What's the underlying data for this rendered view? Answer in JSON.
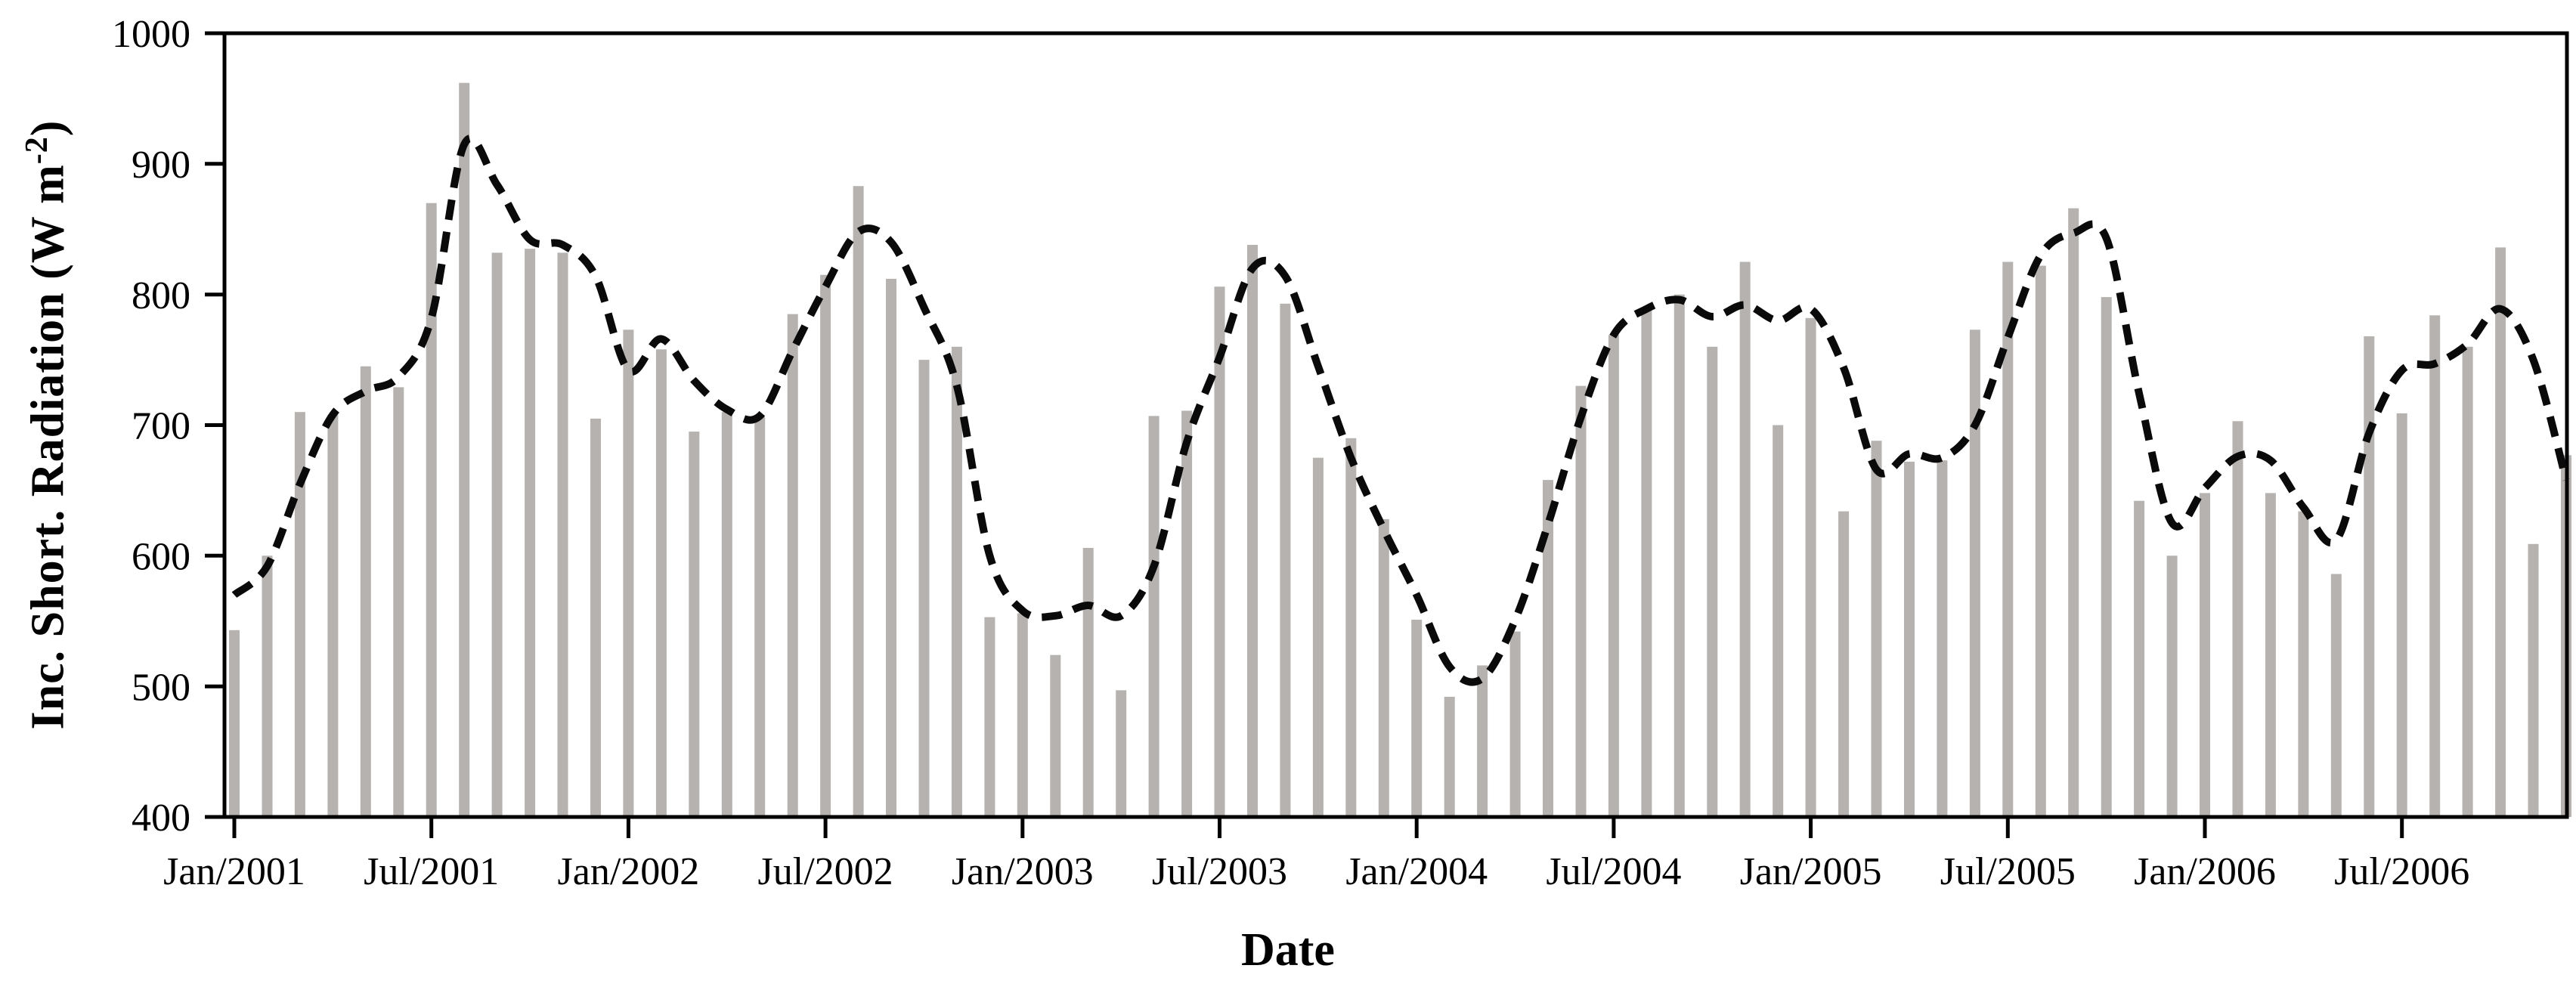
{
  "chart_data": {
    "type": "bar+line",
    "title": "",
    "xlabel": "Date",
    "ylabel_prefix": "Inc. Short. Radiation (W m",
    "ylabel_sup": "-2",
    "ylabel_suffix": ")",
    "ylim": [
      400,
      1000
    ],
    "yticks": [
      400,
      500,
      600,
      700,
      800,
      900,
      1000
    ],
    "grid": false,
    "legend": "none",
    "xtick_labels": [
      "Jan/2001",
      "Jul/2001",
      "Jan/2002",
      "Jul/2002",
      "Jan/2003",
      "Jul/2003",
      "Jan/2004",
      "Jul/2004",
      "Jan/2005",
      "Jul/2005",
      "Jan/2006",
      "Jul/2006"
    ],
    "xtick_month_indices": [
      0,
      6,
      12,
      18,
      24,
      30,
      36,
      42,
      48,
      54,
      60,
      66
    ],
    "months": [
      "Jan/2001",
      "Feb/2001",
      "Mar/2001",
      "Apr/2001",
      "May/2001",
      "Jun/2001",
      "Jul/2001",
      "Aug/2001",
      "Sep/2001",
      "Oct/2001",
      "Nov/2001",
      "Dec/2001",
      "Jan/2002",
      "Feb/2002",
      "Mar/2002",
      "Apr/2002",
      "May/2002",
      "Jun/2002",
      "Jul/2002",
      "Aug/2002",
      "Sep/2002",
      "Oct/2002",
      "Nov/2002",
      "Dec/2002",
      "Jan/2003",
      "Feb/2003",
      "Mar/2003",
      "Apr/2003",
      "May/2003",
      "Jun/2003",
      "Jul/2003",
      "Aug/2003",
      "Sep/2003",
      "Oct/2003",
      "Nov/2003",
      "Dec/2003",
      "Jan/2004",
      "Feb/2004",
      "Mar/2004",
      "Apr/2004",
      "May/2004",
      "Jun/2004",
      "Jul/2004",
      "Aug/2004",
      "Sep/2004",
      "Oct/2004",
      "Nov/2004",
      "Dec/2004",
      "Jan/2005",
      "Feb/2005",
      "Mar/2005",
      "Apr/2005",
      "May/2005",
      "Jun/2005",
      "Jul/2005",
      "Aug/2005",
      "Sep/2005",
      "Oct/2005",
      "Nov/2005",
      "Dec/2005",
      "Jan/2006",
      "Feb/2006",
      "Mar/2006",
      "Apr/2006",
      "May/2006",
      "Jun/2006",
      "Jul/2006",
      "Aug/2006",
      "Sep/2006",
      "Oct/2006",
      "Nov/2006",
      "Dec/2006"
    ],
    "series": [
      {
        "name": "monthly-incident-shortwave-radiation-bars",
        "kind": "bar",
        "values": [
          543,
          600,
          710,
          708,
          745,
          729,
          870,
          962,
          832,
          835,
          832,
          705,
          773,
          758,
          695,
          710,
          706,
          785,
          815,
          883,
          812,
          750,
          760,
          553,
          556,
          524,
          606,
          497,
          707,
          711,
          806,
          838,
          793,
          675,
          690,
          628,
          551,
          492,
          516,
          542,
          658,
          730,
          769,
          790,
          800,
          760,
          825,
          700,
          782,
          634,
          688,
          672,
          673,
          773,
          825,
          822,
          866,
          798,
          642,
          600,
          648,
          703,
          648,
          634,
          586,
          768,
          709,
          784,
          760,
          836,
          609,
          677
        ]
      },
      {
        "name": "smoothed-trend-dashed-line",
        "kind": "line",
        "values": [
          570,
          592,
          655,
          708,
          726,
          737,
          782,
          915,
          884,
          842,
          838,
          814,
          742,
          766,
          734,
          712,
          707,
          757,
          806,
          848,
          840,
          790,
          730,
          600,
          558,
          554,
          562,
          554,
          592,
          687,
          752,
          820,
          814,
          745,
          675,
          620,
          570,
          515,
          506,
          551,
          624,
          706,
          769,
          789,
          796,
          783,
          792,
          780,
          789,
          744,
          666,
          678,
          675,
          700,
          767,
          830,
          847,
          843,
          724,
          625,
          652,
          676,
          673,
          637,
          612,
          694,
          742,
          747,
          762,
          789,
          750,
          658
        ]
      }
    ],
    "colors": {
      "bar": "#b5b2af",
      "line": "#0a0a0a",
      "frame": "#000000",
      "background": "#ffffff"
    }
  }
}
